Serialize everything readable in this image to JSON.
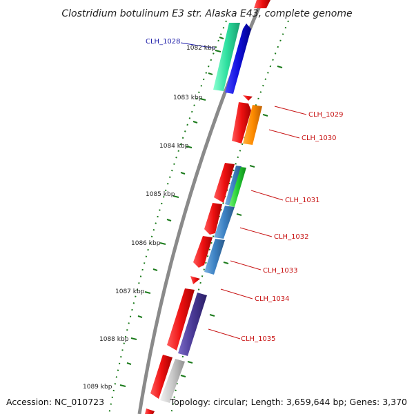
{
  "title": "Clostridium botulinum E3 str. Alaska E43, complete genome",
  "accession": "Accession: NC_010723",
  "topology": "Topology: circular; Length: 3,659,644 bp; Genes: 3,370",
  "kbp_labels": [
    "1082 kbp",
    "1083 kbp",
    "1084 kbp",
    "1085 kbp",
    "1086 kbp",
    "1087 kbp",
    "1088 kbp",
    "1089 kbp"
  ],
  "gene_labels": [
    {
      "text": "CLH_1028",
      "color": "#1a1aa8"
    },
    {
      "text": "CLH_1029",
      "color": "#c81414"
    },
    {
      "text": "CLH_1030",
      "color": "#c81414"
    },
    {
      "text": "CLH_1031",
      "color": "#c81414"
    },
    {
      "text": "CLH_1032",
      "color": "#c81414"
    },
    {
      "text": "CLH_1033",
      "color": "#c81414"
    },
    {
      "text": "CLH_1034",
      "color": "#c81414"
    },
    {
      "text": "CLH_1035",
      "color": "#c81414"
    }
  ],
  "colors": {
    "backbone": "#8a8a8a",
    "ticks": "#1a7a1a",
    "cds_red": "#ee1111",
    "cds_orange": "#ff8c00",
    "cds_cyan": "#2ee0a0",
    "cds_blue": "#1010dd",
    "cds_steel": "#3d82c4",
    "cds_green": "#22cc33",
    "cds_purple": "#4a3a96",
    "cds_gray": "#c8c8c8"
  }
}
